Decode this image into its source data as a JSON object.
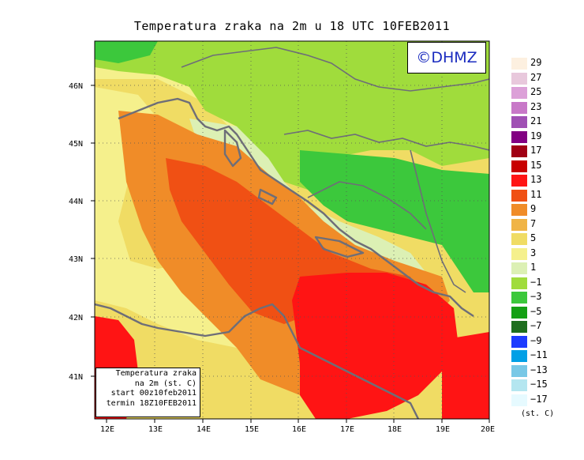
{
  "title": "Temperatura zraka na 2m u 18 UTC 10FEB2011",
  "copyright": "©DHMZ",
  "info": {
    "line1": "Temperatura zraka",
    "line2": "na 2m (st. C)",
    "line3": "start 00z10feb2011",
    "line4": "termin 18Z10FEB2011"
  },
  "x_ticks": [
    "12E",
    "13E",
    "14E",
    "15E",
    "16E",
    "17E",
    "18E",
    "19E",
    "20E"
  ],
  "y_ticks": [
    "46N",
    "45N",
    "44N",
    "43N",
    "42N",
    "41N"
  ],
  "legend": {
    "unit": "(st. C)",
    "labels": [
      "29",
      "27",
      "25",
      "23",
      "21",
      "19",
      "17",
      "15",
      "13",
      "11",
      "9",
      "7",
      "5",
      "3",
      "1",
      "−1",
      "−3",
      "−5",
      "−7",
      "−9",
      "−11",
      "−13",
      "−15",
      "−17"
    ],
    "colors": [
      "#fdf0e0",
      "#e8c8dc",
      "#dca0d8",
      "#c878c8",
      "#a050b4",
      "#820082",
      "#a00014",
      "#c80000",
      "#ff1414",
      "#f05014",
      "#f08c28",
      "#f0b446",
      "#f0dc64",
      "#f5f08c",
      "#dcf0b4",
      "#a0dc3c",
      "#3cc83c",
      "#14a014",
      "#1e6e1e",
      "#1e3cff",
      "#00a0e6",
      "#78c8e6",
      "#b4e6f0",
      "#e6faff"
    ]
  },
  "map": {
    "colors": {
      "orange": "#f08c28",
      "dark_orange": "#f05014",
      "red": "#ff1414",
      "light_yellow": "#f5f08c",
      "yellow": "#f0dc64",
      "light_green": "#a0dc3c",
      "green": "#3cc83c",
      "pale": "#dcf0b4",
      "coast": "#6e6e78"
    }
  }
}
